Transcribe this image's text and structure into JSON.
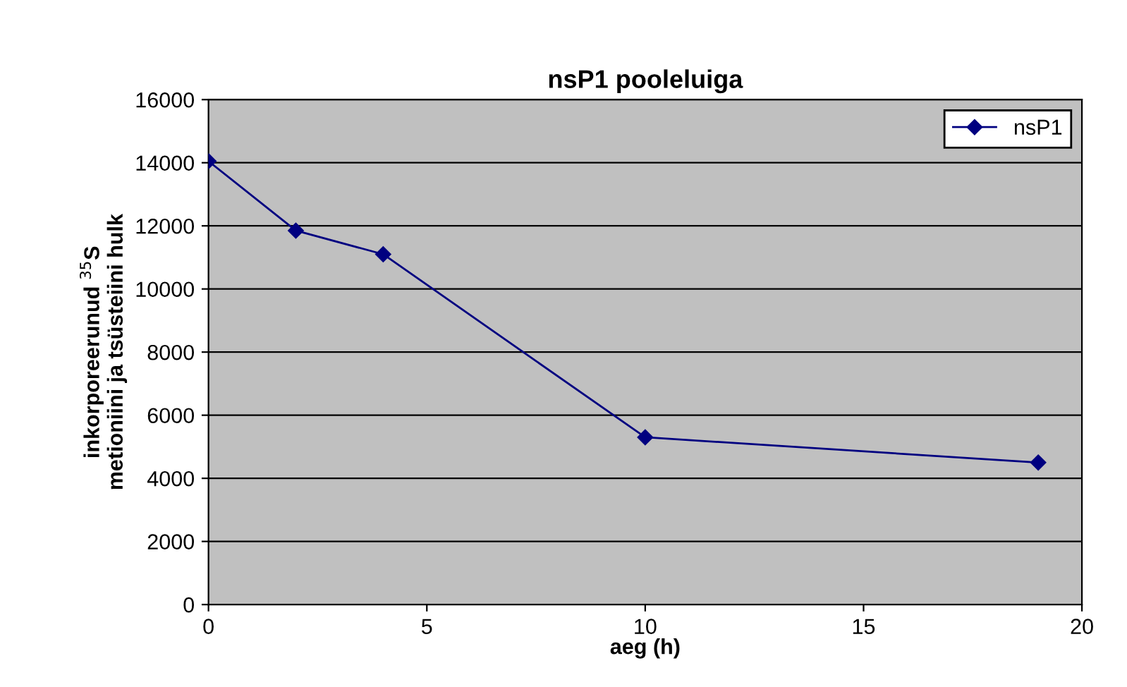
{
  "chart_data": {
    "type": "line",
    "title": "nsP1 pooleluiga",
    "xlabel": "aeg (h)",
    "ylabel": "inkorporeerunud $^{35}$S\nmetioniini ja tsüsteiini hulk",
    "x": [
      0,
      2,
      4,
      10,
      19
    ],
    "series": [
      {
        "name": "nsP1",
        "color": "#000080",
        "values": [
          14050,
          11850,
          11100,
          5300,
          4500
        ]
      }
    ],
    "xlim": [
      0,
      20
    ],
    "xticks": [
      0,
      5,
      10,
      15,
      20
    ],
    "ylim": [
      0,
      16000
    ],
    "yticks": [
      0,
      2000,
      4000,
      6000,
      8000,
      10000,
      12000,
      14000,
      16000
    ],
    "grid": "y",
    "legend": "top right",
    "marker": "diamond",
    "line_style": "solid"
  }
}
